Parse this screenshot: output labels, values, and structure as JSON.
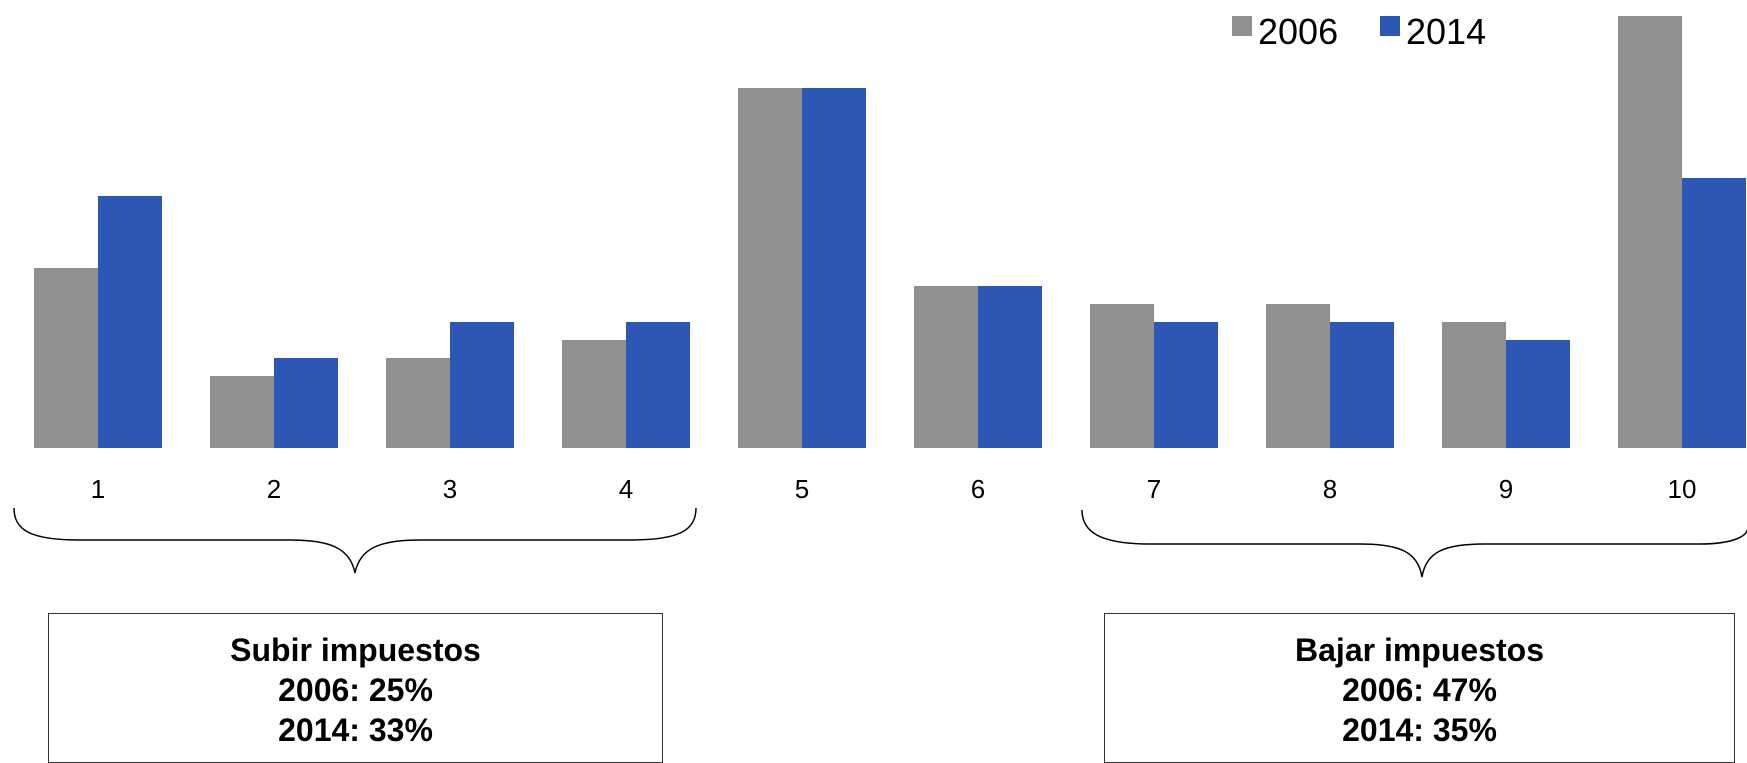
{
  "chart_data": {
    "type": "bar",
    "categories": [
      "1",
      "2",
      "3",
      "4",
      "5",
      "6",
      "7",
      "8",
      "9",
      "10"
    ],
    "series": [
      {
        "name": "2006",
        "color": "#8f8f8f",
        "values": [
          10,
          4,
          5,
          6,
          20,
          9,
          8,
          8,
          7,
          24
        ]
      },
      {
        "name": "2014",
        "color": "#2e57b3",
        "values": [
          14,
          5,
          7,
          7,
          20,
          9,
          7,
          7,
          6,
          15
        ]
      }
    ],
    "title": "",
    "xlabel": "",
    "ylabel": "",
    "ylim": [
      0,
      24
    ],
    "grid": false,
    "legend_position": "top-right",
    "annotations": [
      {
        "group": "left",
        "lines": [
          "Subir impuestos",
          "2006: 25%",
          "2014: 33%"
        ]
      },
      {
        "group": "right",
        "lines": [
          "Bajar impuestos",
          "2006: 47%",
          "2014: 35%"
        ]
      }
    ]
  }
}
